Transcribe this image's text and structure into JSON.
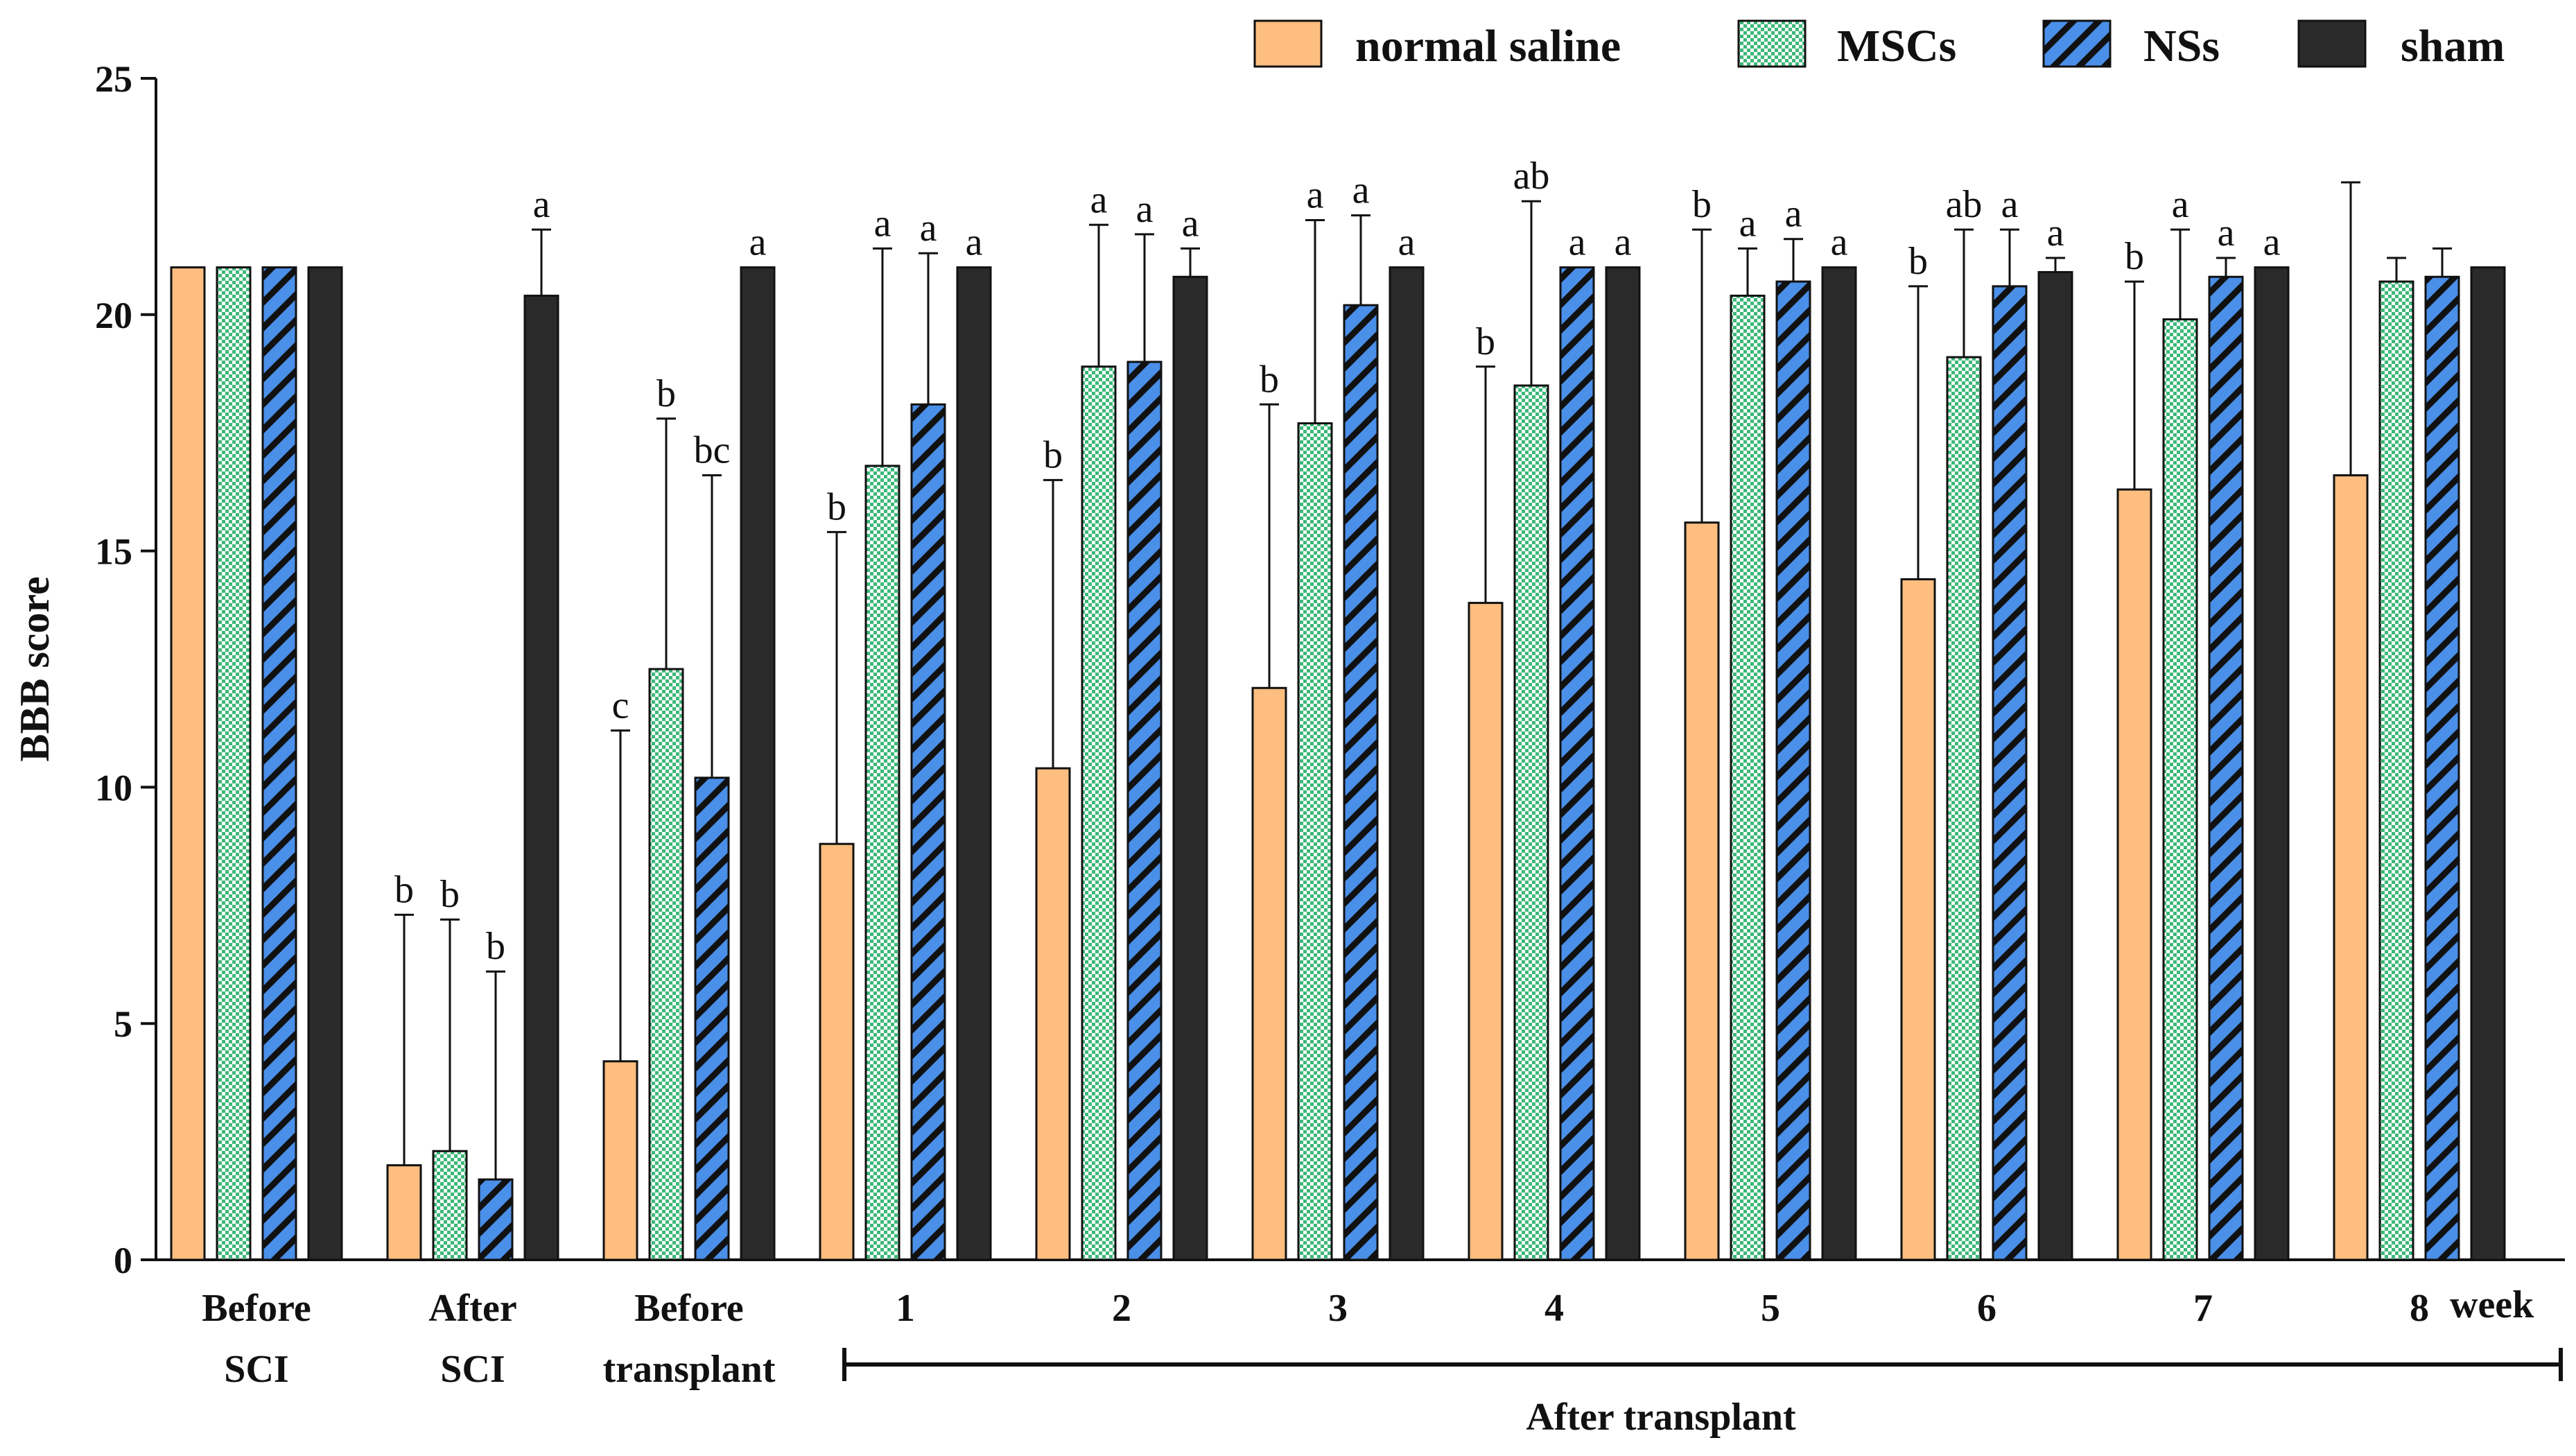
{
  "chart_data": {
    "type": "bar",
    "ylabel": "BBB score",
    "xlabel": "",
    "ylim": [
      0,
      25
    ],
    "yticks": [
      0,
      5,
      10,
      15,
      20,
      25
    ],
    "categories": [
      [
        "Before",
        "SCI"
      ],
      [
        "After",
        "SCI"
      ],
      [
        "Before",
        "transplant"
      ],
      [
        "1"
      ],
      [
        "2"
      ],
      [
        "3"
      ],
      [
        "4"
      ],
      [
        "5"
      ],
      [
        "6"
      ],
      [
        "7"
      ],
      [
        "8"
      ]
    ],
    "unit_label": "week",
    "bracket_label": "After transplant",
    "legend_position": "top-right",
    "series": [
      {
        "name": "normal saline",
        "color": "#FDBE7F",
        "pattern": "solid",
        "values": [
          21,
          2.0,
          4.2,
          8.8,
          10.4,
          12.1,
          13.9,
          15.6,
          14.4,
          16.3,
          16.6
        ],
        "errors": [
          0,
          5.3,
          7.0,
          6.6,
          6.1,
          6.0,
          5.0,
          6.2,
          6.2,
          4.4,
          6.2
        ],
        "sig": [
          "",
          "b",
          "c",
          "b",
          "b",
          "b",
          "b",
          "b",
          "b",
          "b",
          ""
        ]
      },
      {
        "name": "MSCs",
        "color": "#3CB879",
        "pattern": "checker",
        "values": [
          21,
          2.3,
          12.5,
          16.8,
          18.9,
          17.7,
          18.5,
          20.4,
          19.1,
          19.9,
          20.7
        ],
        "errors": [
          0,
          4.9,
          5.3,
          4.6,
          3.0,
          4.3,
          3.9,
          1.0,
          2.7,
          1.9,
          0.5
        ],
        "sig": [
          "",
          "b",
          "b",
          "a",
          "a",
          "a",
          "ab",
          "a",
          "ab",
          "a",
          ""
        ]
      },
      {
        "name": "NSs",
        "color": "#4A8FE8",
        "pattern": "hatch",
        "values": [
          21,
          1.7,
          10.2,
          18.1,
          19.0,
          20.2,
          21.0,
          20.7,
          20.6,
          20.8,
          20.8
        ],
        "errors": [
          0,
          4.4,
          6.4,
          3.2,
          2.7,
          1.9,
          0,
          0.9,
          1.2,
          0.4,
          0.6
        ],
        "sig": [
          "",
          "b",
          "bc",
          "a",
          "a",
          "a",
          "a",
          "a",
          "a",
          "a",
          ""
        ]
      },
      {
        "name": "sham",
        "color": "#2A2A2A",
        "pattern": "solid",
        "values": [
          21,
          20.4,
          21.0,
          21.0,
          20.8,
          21.0,
          21.0,
          21.0,
          20.9,
          21.0,
          21.0
        ],
        "errors": [
          0,
          1.4,
          0,
          0,
          0.6,
          0,
          0,
          0,
          0.3,
          0,
          0
        ],
        "sig": [
          "",
          "a",
          "a",
          "a",
          "a",
          "a",
          "a",
          "a",
          "a",
          "a",
          ""
        ]
      }
    ]
  }
}
